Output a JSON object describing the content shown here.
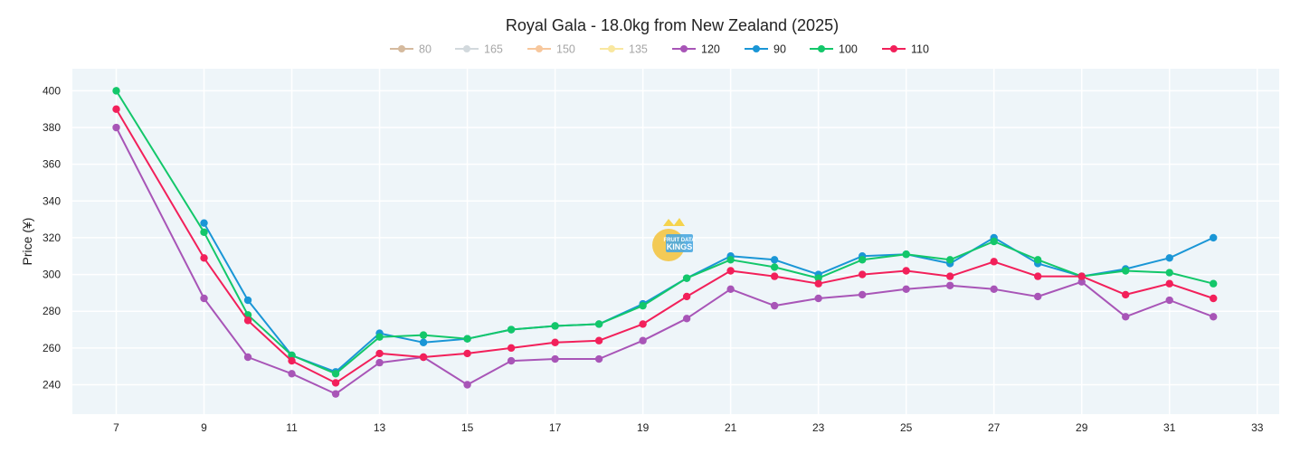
{
  "chart_data": {
    "type": "line",
    "title": "Royal Gala - 18.0kg from New Zealand (2025)",
    "xlabel": "",
    "ylabel": "Price (¥)",
    "xlim": [
      6,
      33.5
    ],
    "ylim": [
      224,
      412
    ],
    "x_ticks": [
      7,
      9,
      11,
      13,
      15,
      17,
      19,
      21,
      23,
      25,
      27,
      29,
      31,
      33
    ],
    "y_ticks": [
      240,
      260,
      280,
      300,
      320,
      340,
      360,
      380,
      400
    ],
    "grid": true,
    "legend_position": "top-center",
    "plot_background": "#eef5f9",
    "series": [
      {
        "name": "80",
        "color": "#c8a47e",
        "hidden": true,
        "x": [],
        "y": []
      },
      {
        "name": "165",
        "color": "#c4cdd2",
        "hidden": true,
        "x": [],
        "y": []
      },
      {
        "name": "150",
        "color": "#f5b57c",
        "hidden": true,
        "x": [],
        "y": []
      },
      {
        "name": "135",
        "color": "#f7df80",
        "hidden": true,
        "x": [],
        "y": []
      },
      {
        "name": "120",
        "color": "#a855b7",
        "hidden": false,
        "x": [
          7,
          9,
          10,
          11,
          12,
          13,
          14,
          15,
          16,
          17,
          18,
          19,
          20,
          21,
          22,
          23,
          24,
          25,
          26,
          27,
          28,
          29,
          30,
          31,
          32
        ],
        "y": [
          380,
          287,
          255,
          246,
          235,
          252,
          255,
          240,
          253,
          254,
          254,
          264,
          276,
          292,
          283,
          287,
          289,
          292,
          294,
          292,
          288,
          296,
          277,
          286,
          277
        ]
      },
      {
        "name": "90",
        "color": "#1a96d6",
        "hidden": false,
        "x": [
          9,
          10,
          11,
          12,
          13,
          14,
          15,
          16,
          17,
          18,
          19,
          20,
          21,
          22,
          23,
          24,
          25,
          26,
          27,
          28,
          29,
          30,
          31,
          32
        ],
        "y": [
          328,
          286,
          256,
          247,
          268,
          263,
          265,
          270,
          272,
          273,
          284,
          298,
          310,
          308,
          300,
          310,
          311,
          306,
          320,
          306,
          299,
          303,
          309,
          320
        ]
      },
      {
        "name": "100",
        "color": "#13c76a",
        "hidden": false,
        "x": [
          7,
          9,
          10,
          11,
          12,
          13,
          14,
          15,
          16,
          17,
          18,
          19,
          20,
          21,
          22,
          23,
          24,
          25,
          26,
          27,
          28,
          29,
          30,
          31,
          32
        ],
        "y": [
          400,
          323,
          278,
          256,
          246,
          266,
          267,
          265,
          270,
          272,
          273,
          283,
          298,
          308,
          304,
          298,
          308,
          311,
          308,
          318,
          308,
          299,
          302,
          301,
          295
        ]
      },
      {
        "name": "110",
        "color": "#f2205a",
        "hidden": false,
        "x": [
          7,
          9,
          10,
          11,
          12,
          13,
          14,
          15,
          16,
          17,
          18,
          19,
          20,
          21,
          22,
          23,
          24,
          25,
          26,
          27,
          28,
          29,
          30,
          31,
          32
        ],
        "y": [
          390,
          309,
          275,
          253,
          241,
          257,
          255,
          257,
          260,
          263,
          264,
          273,
          288,
          302,
          299,
          295,
          300,
          302,
          299,
          307,
          299,
          299,
          289,
          295,
          287
        ]
      }
    ]
  }
}
